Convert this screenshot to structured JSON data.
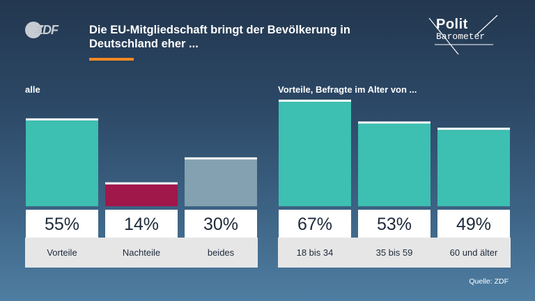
{
  "header": {
    "title": "Die EU-Mitgliedschaft bringt der Bevölkerung in Deutschland eher ...",
    "logo_left": "ZDF",
    "logo_right_line1": "Polit",
    "logo_right_line2": "Barometer",
    "accent_color": "#f08a24"
  },
  "labels": {
    "left_group": "alle",
    "right_group": "Vorteile, Befragte im Alter von ..."
  },
  "source": "Quelle: ZDF",
  "chart_data": [
    {
      "type": "bar",
      "title": "alle",
      "categories": [
        "Vorteile",
        "Nachteile",
        "beides"
      ],
      "values": [
        55,
        14,
        30
      ],
      "value_labels": [
        "55%",
        "14%",
        "30%"
      ],
      "colors": [
        "#3dbfb1",
        "#a0174a",
        "#84a1b1"
      ],
      "ylim": [
        0,
        100
      ],
      "grid": false
    },
    {
      "type": "bar",
      "title": "Vorteile, Befragte im Alter von ...",
      "categories": [
        "18 bis 34",
        "35 bis 59",
        "60 und älter"
      ],
      "values": [
        67,
        53,
        49
      ],
      "value_labels": [
        "67%",
        "53%",
        "49%"
      ],
      "colors": [
        "#3dbfb1",
        "#3dbfb1",
        "#3dbfb1"
      ],
      "ylim": [
        0,
        100
      ],
      "grid": false
    }
  ]
}
